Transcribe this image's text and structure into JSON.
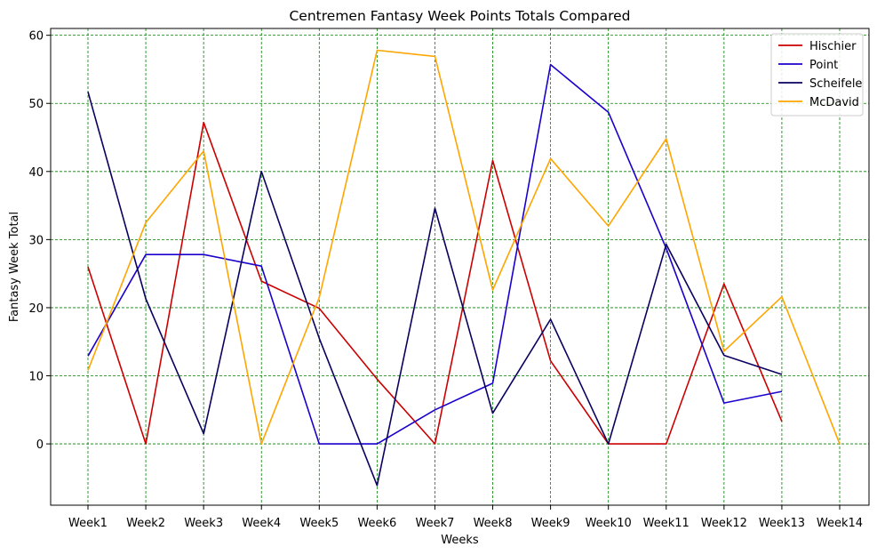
{
  "chart_data": {
    "type": "line",
    "title": "Centremen Fantasy Week Points Totals Compared",
    "xlabel": "Weeks",
    "ylabel": "Fantasy Week Total",
    "categories": [
      "Week1",
      "Week2",
      "Week3",
      "Week4",
      "Week5",
      "Week6",
      "Week7",
      "Week8",
      "Week9",
      "Week10",
      "Week11",
      "Week12",
      "Week13",
      "Week14"
    ],
    "ylim": [
      -9,
      61
    ],
    "yticks": [
      0,
      10,
      20,
      30,
      40,
      50,
      60
    ],
    "grid": true,
    "grid_color": "#008000",
    "legend_position": "top-right",
    "series": [
      {
        "name": "Hischier",
        "color": "#cc0000",
        "values": [
          26.0,
          0.0,
          47.2,
          23.9,
          19.9,
          9.5,
          0.0,
          41.6,
          12.2,
          0.0,
          0.0,
          23.5,
          3.3,
          null
        ]
      },
      {
        "name": "Point",
        "color": "#1a00cc",
        "values": [
          12.9,
          27.8,
          27.8,
          26.1,
          0.0,
          0.0,
          5.0,
          8.9,
          55.7,
          48.7,
          28.7,
          6.0,
          7.7,
          null
        ]
      },
      {
        "name": "Scheifele",
        "color": "#0a0060",
        "values": [
          51.7,
          21.3,
          1.5,
          40.0,
          15.5,
          -6.1,
          34.6,
          4.5,
          18.3,
          0.0,
          29.3,
          13.0,
          10.2,
          null
        ]
      },
      {
        "name": "McDavid",
        "color": "#ffa500",
        "values": [
          10.8,
          32.5,
          43.0,
          0.0,
          21.5,
          57.8,
          56.9,
          22.6,
          41.9,
          32.0,
          44.8,
          13.6,
          21.6,
          0.0
        ]
      }
    ]
  }
}
